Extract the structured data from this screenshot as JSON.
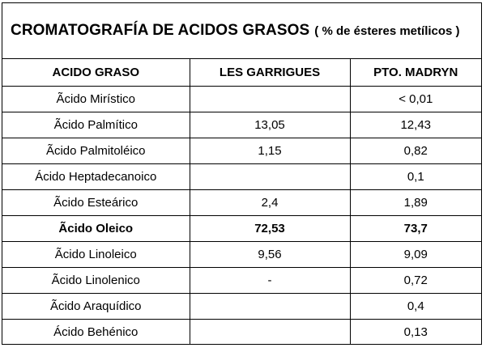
{
  "title": {
    "main": "CROMATOGRAFÍA DE ACIDOS GRASOS",
    "sub": "( % de ésteres metílicos )"
  },
  "headers": [
    "ACIDO GRASO",
    "LES GARRIGUES",
    "PTO. MADRYN"
  ],
  "rows": [
    [
      "Ãcido Mirístico",
      "",
      "< 0,01"
    ],
    [
      "Ãcido Palmítico",
      "13,05",
      "12,43"
    ],
    [
      "Ãcido Palmitoléico",
      "1,15",
      "0,82"
    ],
    [
      "Ácido Heptadecanoico",
      "",
      "0,1"
    ],
    [
      "Ãcido  Esteárico",
      "2,4",
      "1,89"
    ],
    [
      "Ãcido Oleico",
      "72,53",
      "73,7"
    ],
    [
      "Ãcido Linoleico",
      "9,56",
      "9,09"
    ],
    [
      "Ãcido Linolenico",
      "-",
      "0,72"
    ],
    [
      "Ãcido Araquídico",
      "",
      "0,4"
    ],
    [
      "Ácido Behénico",
      "",
      "0,13"
    ]
  ],
  "bold_row_index": 5
}
